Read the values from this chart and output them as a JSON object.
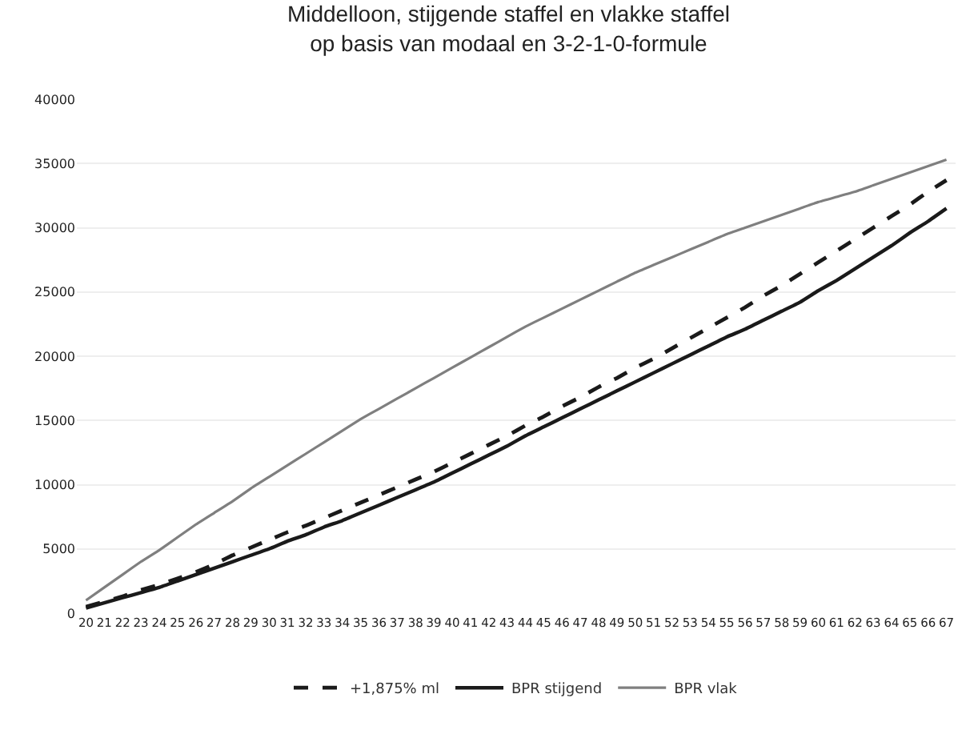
{
  "chart_data": {
    "type": "line",
    "title": "Middelloon, stijgende staffel en vlakke staffel\nop basis van modaal en 3-2-1-0-formule",
    "categories": [
      "20",
      "21",
      "22",
      "23",
      "24",
      "25",
      "26",
      "27",
      "28",
      "29",
      "30",
      "31",
      "32",
      "33",
      "34",
      "35",
      "36",
      "37",
      "38",
      "39",
      "40",
      "41",
      "42",
      "43",
      "44",
      "45",
      "46",
      "47",
      "48",
      "49",
      "50",
      "51",
      "52",
      "53",
      "54",
      "55",
      "56",
      "57",
      "58",
      "59",
      "60",
      "61",
      "62",
      "63",
      "64",
      "65",
      "66",
      "67"
    ],
    "series": [
      {
        "name": "+1,875% ml",
        "color": "#1a1a1a",
        "line_style": "dashed",
        "values": [
          500,
          900,
          1300,
          1800,
          2200,
          2700,
          3200,
          3800,
          4500,
          5100,
          5700,
          6300,
          6800,
          7400,
          8000,
          8600,
          9200,
          9800,
          10400,
          11000,
          11700,
          12400,
          13100,
          13800,
          14600,
          15300,
          16100,
          16800,
          17600,
          18300,
          19100,
          19800,
          20600,
          21400,
          22200,
          23000,
          23800,
          24700,
          25500,
          26400,
          27300,
          28200,
          29100,
          30000,
          30900,
          31800,
          32800,
          33700
        ]
      },
      {
        "name": "BPR stijgend",
        "color": "#1a1a1a",
        "line_style": "solid",
        "values": [
          400,
          800,
          1200,
          1600,
          2000,
          2500,
          3000,
          3500,
          4000,
          4500,
          5000,
          5600,
          6100,
          6700,
          7200,
          7800,
          8400,
          9000,
          9600,
          10200,
          10900,
          11600,
          12300,
          13000,
          13800,
          14500,
          15200,
          15900,
          16600,
          17300,
          18000,
          18700,
          19400,
          20100,
          20800,
          21500,
          22100,
          22800,
          23500,
          24200,
          25100,
          25900,
          26800,
          27700,
          28600,
          29600,
          30500,
          31500
        ]
      },
      {
        "name": "BPR vlak",
        "color": "#7f7f7f",
        "line_style": "solid",
        "values": [
          1000,
          2000,
          3000,
          4000,
          4900,
          5900,
          6900,
          7800,
          8700,
          9700,
          10600,
          11500,
          12400,
          13300,
          14200,
          15100,
          15900,
          16700,
          17500,
          18300,
          19100,
          19900,
          20700,
          21500,
          22300,
          23000,
          23700,
          24400,
          25100,
          25800,
          26500,
          27100,
          27700,
          28300,
          28900,
          29500,
          30000,
          30500,
          31000,
          31500,
          32000,
          32400,
          32800,
          33300,
          33800,
          34300,
          34800,
          35300
        ]
      }
    ],
    "ylim": [
      0,
      40000
    ],
    "yticks": [
      0,
      5000,
      10000,
      15000,
      20000,
      25000,
      30000,
      35000,
      40000
    ],
    "grid": "y",
    "legend": "bottom",
    "marker": "none"
  }
}
